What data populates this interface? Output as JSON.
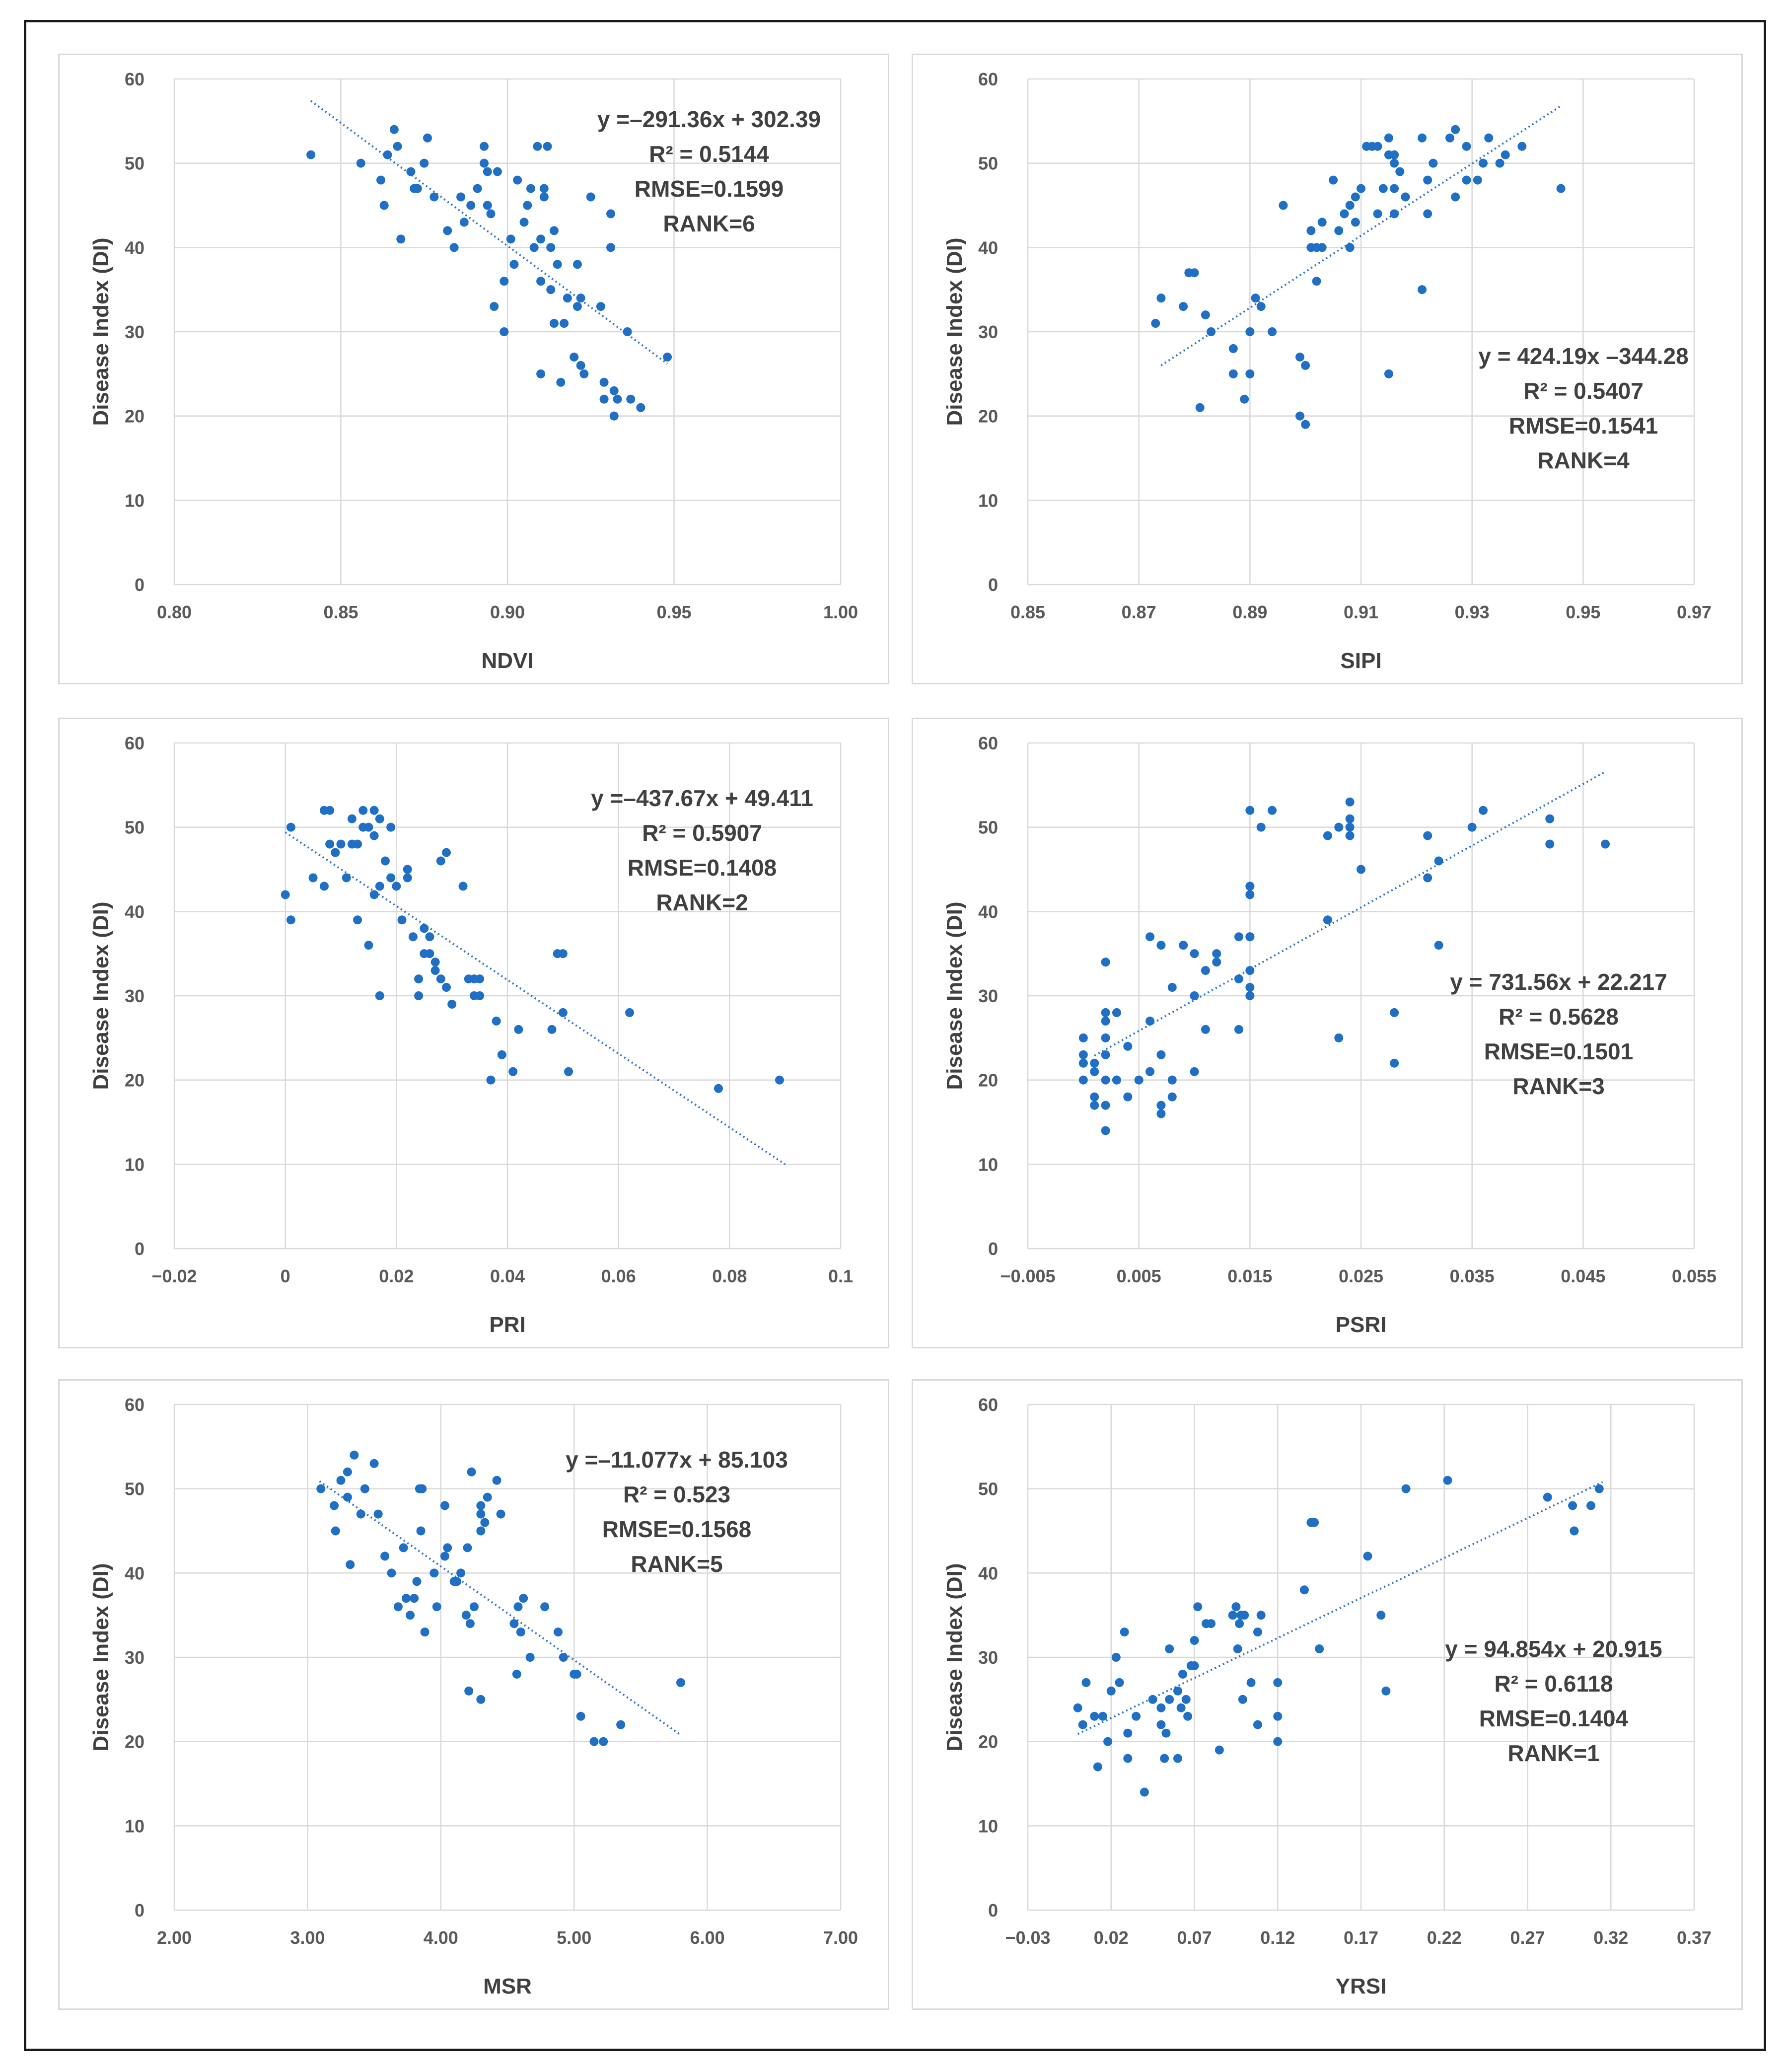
{
  "colors": {
    "point": "#1f6fc5",
    "trend": "#2e75c7",
    "grid": "#d9d9d9",
    "text": "#404040",
    "tick": "#595959"
  },
  "chart_data": [
    {
      "type": "scatter",
      "id": "ndvi",
      "xlabel": "NDVI",
      "ylabel": "Disease Index (DI)",
      "xlim": [
        0.8,
        1.0
      ],
      "ylim": [
        0,
        60
      ],
      "xticks": [
        "0.80",
        "0.85",
        "0.90",
        "0.95",
        "1.00"
      ],
      "yticks": [
        "0",
        "10",
        "20",
        "30",
        "40",
        "50",
        "60"
      ],
      "trendline": {
        "x": [
          0.841,
          0.948
        ],
        "y": [
          57.4,
          26.2
        ]
      },
      "annotation": [
        "y =–291.36x + 302.39",
        "R² = 0.5144",
        "RMSE=0.1599",
        "RANK=6"
      ],
      "x": [
        0.841,
        0.856,
        0.862,
        0.863,
        0.864,
        0.866,
        0.867,
        0.868,
        0.871,
        0.872,
        0.873,
        0.875,
        0.876,
        0.878,
        0.882,
        0.884,
        0.886,
        0.887,
        0.889,
        0.891,
        0.893,
        0.893,
        0.894,
        0.894,
        0.895,
        0.896,
        0.897,
        0.899,
        0.899,
        0.901,
        0.902,
        0.903,
        0.905,
        0.906,
        0.907,
        0.908,
        0.909,
        0.91,
        0.91,
        0.91,
        0.911,
        0.911,
        0.912,
        0.913,
        0.913,
        0.914,
        0.914,
        0.915,
        0.916,
        0.917,
        0.918,
        0.92,
        0.921,
        0.921,
        0.922,
        0.922,
        0.923,
        0.925,
        0.928,
        0.929,
        0.929,
        0.931,
        0.931,
        0.932,
        0.932,
        0.933,
        0.936,
        0.937,
        0.94,
        0.948
      ],
      "y": [
        51,
        50,
        48,
        45,
        51,
        54,
        52,
        41,
        49,
        47,
        47,
        50,
        53,
        46,
        42,
        40,
        46,
        43,
        45,
        47,
        52,
        50,
        45,
        49,
        44,
        33,
        49,
        36,
        30,
        41,
        38,
        48,
        43,
        45,
        47,
        40,
        52,
        41,
        36,
        25,
        47,
        46,
        52,
        35,
        40,
        31,
        42,
        38,
        24,
        31,
        34,
        27,
        33,
        38,
        26,
        34,
        25,
        46,
        33,
        24,
        22,
        40,
        44,
        23,
        20,
        22,
        30,
        22,
        21,
        27
      ]
    },
    {
      "type": "scatter",
      "id": "sipi",
      "xlabel": "SIPI",
      "ylabel": "Disease Index (DI)",
      "xlim": [
        0.85,
        0.97
      ],
      "ylim": [
        0,
        60
      ],
      "xticks": [
        "0.85",
        "0.87",
        "0.89",
        "0.91",
        "0.93",
        "0.95",
        "0.97"
      ],
      "yticks": [
        "0",
        "10",
        "20",
        "30",
        "40",
        "50",
        "60"
      ],
      "trendline": {
        "x": [
          0.874,
          0.946
        ],
        "y": [
          26.0,
          56.8
        ]
      },
      "annotation": [
        "y = 424.19x –344.28",
        "R² = 0.5407",
        "RMSE=0.1541",
        "RANK=4"
      ],
      "x": [
        0.873,
        0.874,
        0.878,
        0.879,
        0.88,
        0.881,
        0.882,
        0.883,
        0.887,
        0.887,
        0.889,
        0.89,
        0.89,
        0.891,
        0.892,
        0.894,
        0.896,
        0.899,
        0.899,
        0.9,
        0.9,
        0.901,
        0.901,
        0.902,
        0.902,
        0.903,
        0.903,
        0.905,
        0.906,
        0.907,
        0.908,
        0.908,
        0.909,
        0.909,
        0.91,
        0.911,
        0.911,
        0.912,
        0.913,
        0.913,
        0.914,
        0.915,
        0.915,
        0.915,
        0.916,
        0.916,
        0.916,
        0.916,
        0.917,
        0.918,
        0.921,
        0.921,
        0.922,
        0.922,
        0.923,
        0.926,
        0.927,
        0.927,
        0.929,
        0.929,
        0.931,
        0.932,
        0.933,
        0.935,
        0.936,
        0.939,
        0.946
      ],
      "y": [
        31,
        34,
        33,
        37,
        37,
        21,
        32,
        30,
        28,
        25,
        22,
        30,
        25,
        34,
        33,
        30,
        45,
        27,
        20,
        19,
        26,
        42,
        40,
        40,
        36,
        43,
        40,
        48,
        42,
        44,
        40,
        45,
        46,
        43,
        47,
        52,
        52,
        52,
        52,
        44,
        47,
        51,
        53,
        25,
        50,
        47,
        51,
        44,
        49,
        46,
        53,
        35,
        44,
        48,
        50,
        53,
        54,
        46,
        48,
        52,
        48,
        50,
        53,
        50,
        51,
        52,
        47
      ]
    },
    {
      "type": "scatter",
      "id": "pri",
      "xlabel": "PRI",
      "ylabel": "Disease Index (DI)",
      "xlim": [
        -0.02,
        0.1
      ],
      "ylim": [
        0,
        60
      ],
      "xticks": [
        "−0.02",
        "0",
        "0.02",
        "0.04",
        "0.06",
        "0.08",
        "0.1"
      ],
      "yticks": [
        "0",
        "10",
        "20",
        "30",
        "40",
        "50",
        "60"
      ],
      "trendline": {
        "x": [
          0.0,
          0.09
        ],
        "y": [
          49.4,
          10.0
        ]
      },
      "annotation": [
        "y =–437.67x + 49.411",
        "R² = 0.5907",
        "RMSE=0.1408",
        "RANK=2"
      ],
      "x": [
        0.0,
        0.001,
        0.001,
        0.005,
        0.007,
        0.007,
        0.008,
        0.008,
        0.009,
        0.009,
        0.01,
        0.011,
        0.012,
        0.012,
        0.013,
        0.013,
        0.014,
        0.014,
        0.015,
        0.015,
        0.016,
        0.016,
        0.016,
        0.017,
        0.017,
        0.017,
        0.018,
        0.019,
        0.019,
        0.02,
        0.021,
        0.022,
        0.022,
        0.023,
        0.024,
        0.024,
        0.025,
        0.025,
        0.026,
        0.026,
        0.027,
        0.027,
        0.028,
        0.028,
        0.029,
        0.029,
        0.03,
        0.032,
        0.033,
        0.034,
        0.034,
        0.035,
        0.035,
        0.037,
        0.038,
        0.039,
        0.041,
        0.042,
        0.048,
        0.049,
        0.05,
        0.05,
        0.051,
        0.062,
        0.078,
        0.089
      ],
      "y": [
        42,
        39,
        50,
        44,
        43,
        52,
        48,
        52,
        47,
        47,
        48,
        44,
        51,
        48,
        48,
        39,
        50,
        52,
        36,
        50,
        42,
        49,
        52,
        30,
        51,
        43,
        46,
        44,
        50,
        43,
        39,
        44,
        45,
        37,
        32,
        30,
        38,
        35,
        35,
        37,
        33,
        34,
        32,
        46,
        31,
        47,
        29,
        43,
        32,
        32,
        30,
        30,
        32,
        20,
        27,
        23,
        21,
        26,
        26,
        35,
        28,
        35,
        21,
        28,
        19,
        20
      ]
    },
    {
      "type": "scatter",
      "id": "psri",
      "xlabel": "PSRI",
      "ylabel": "Disease Index (DI)",
      "xlim": [
        -0.005,
        0.055
      ],
      "ylim": [
        0,
        60
      ],
      "xticks": [
        "−0.005",
        "0.005",
        "0.015",
        "0.025",
        "0.035",
        "0.045",
        "0.055"
      ],
      "yticks": [
        "0",
        "10",
        "20",
        "30",
        "40",
        "50",
        "60"
      ],
      "trendline": {
        "x": [
          0.001,
          0.047
        ],
        "y": [
          22.9,
          56.6
        ]
      },
      "annotation": [
        "y = 731.56x + 22.217",
        "R² = 0.5628",
        "RMSE=0.1501",
        "RANK=3"
      ],
      "x": [
        0.0,
        0.0,
        0.0,
        0.0,
        0.0,
        0.001,
        0.001,
        0.001,
        0.001,
        0.002,
        0.002,
        0.002,
        0.002,
        0.002,
        0.002,
        0.002,
        0.002,
        0.003,
        0.003,
        0.003,
        0.004,
        0.004,
        0.005,
        0.006,
        0.006,
        0.006,
        0.007,
        0.007,
        0.007,
        0.007,
        0.008,
        0.008,
        0.008,
        0.009,
        0.01,
        0.01,
        0.01,
        0.011,
        0.011,
        0.012,
        0.012,
        0.014,
        0.014,
        0.014,
        0.015,
        0.015,
        0.015,
        0.015,
        0.015,
        0.015,
        0.015,
        0.015,
        0.015,
        0.016,
        0.017,
        0.022,
        0.022,
        0.023,
        0.023,
        0.024,
        0.024,
        0.024,
        0.024,
        0.025,
        0.028,
        0.028,
        0.031,
        0.031,
        0.032,
        0.032,
        0.035,
        0.036,
        0.042,
        0.042,
        0.047
      ],
      "y": [
        20,
        22,
        23,
        25,
        22,
        21,
        17,
        18,
        22,
        14,
        17,
        20,
        23,
        27,
        28,
        25,
        34,
        20,
        20,
        28,
        24,
        18,
        20,
        37,
        27,
        21,
        16,
        23,
        17,
        36,
        31,
        18,
        20,
        36,
        35,
        30,
        21,
        33,
        26,
        35,
        34,
        37,
        26,
        32,
        33,
        31,
        30,
        37,
        42,
        43,
        37,
        52,
        43,
        50,
        52,
        49,
        39,
        25,
        50,
        53,
        51,
        49,
        50,
        45,
        28,
        22,
        49,
        44,
        36,
        46,
        50,
        52,
        51,
        48,
        48
      ]
    },
    {
      "type": "scatter",
      "id": "msr",
      "xlabel": "MSR",
      "ylabel": "Disease Index (DI)",
      "xlim": [
        2.0,
        7.0
      ],
      "ylim": [
        0,
        60
      ],
      "xticks": [
        "2.00",
        "3.00",
        "4.00",
        "5.00",
        "6.00",
        "7.00"
      ],
      "yticks": [
        "0",
        "10",
        "20",
        "30",
        "40",
        "50",
        "60"
      ],
      "trendline": {
        "x": [
          3.09,
          5.79
        ],
        "y": [
          50.9,
          20.9
        ]
      },
      "annotation": [
        "y =–11.077x + 85.103",
        "R² = 0.523",
        "RMSE=0.1568",
        "RANK=5"
      ],
      "x": [
        3.1,
        3.2,
        3.21,
        3.25,
        3.3,
        3.3,
        3.32,
        3.35,
        3.4,
        3.43,
        3.5,
        3.53,
        3.58,
        3.63,
        3.68,
        3.72,
        3.74,
        3.77,
        3.8,
        3.82,
        3.84,
        3.85,
        3.86,
        3.88,
        3.95,
        3.97,
        4.03,
        4.03,
        4.05,
        4.1,
        4.12,
        4.15,
        4.19,
        4.2,
        4.21,
        4.22,
        4.23,
        4.25,
        4.3,
        4.3,
        4.3,
        4.3,
        4.33,
        4.35,
        4.42,
        4.45,
        4.55,
        4.57,
        4.58,
        4.6,
        4.62,
        4.67,
        4.78,
        4.88,
        4.92,
        5.0,
        5.02,
        5.05,
        5.15,
        5.22,
        5.35,
        5.8
      ],
      "y": [
        50,
        48,
        45,
        51,
        49,
        52,
        41,
        54,
        47,
        50,
        53,
        47,
        42,
        40,
        36,
        43,
        37,
        35,
        37,
        39,
        50,
        45,
        50,
        33,
        40,
        36,
        48,
        42,
        43,
        39,
        39,
        40,
        35,
        43,
        26,
        34,
        52,
        36,
        25,
        47,
        48,
        45,
        46,
        49,
        51,
        47,
        34,
        28,
        36,
        33,
        37,
        30,
        36,
        33,
        30,
        28,
        28,
        23,
        20,
        20,
        22,
        27
      ]
    },
    {
      "type": "scatter",
      "id": "yrsi",
      "xlabel": "YRSI",
      "ylabel": "Disease Index (DI)",
      "xlim": [
        -0.03,
        0.37
      ],
      "ylim": [
        0,
        60
      ],
      "xticks": [
        "−0.03",
        "0.02",
        "0.07",
        "0.12",
        "0.17",
        "0.22",
        "0.27",
        "0.32",
        "0.37"
      ],
      "yticks": [
        "0",
        "10",
        "20",
        "30",
        "40",
        "50",
        "60"
      ],
      "trendline": {
        "x": [
          0.0,
          0.315
        ],
        "y": [
          20.9,
          50.8
        ]
      },
      "annotation": [
        "y = 94.854x + 20.915",
        "R² = 0.6118",
        "RMSE=0.1404",
        "RANK=1"
      ],
      "x": [
        0.0,
        0.003,
        0.005,
        0.01,
        0.012,
        0.015,
        0.018,
        0.02,
        0.023,
        0.025,
        0.028,
        0.03,
        0.03,
        0.035,
        0.04,
        0.045,
        0.05,
        0.05,
        0.052,
        0.053,
        0.055,
        0.055,
        0.06,
        0.06,
        0.062,
        0.063,
        0.065,
        0.066,
        0.068,
        0.07,
        0.07,
        0.072,
        0.077,
        0.08,
        0.085,
        0.093,
        0.095,
        0.096,
        0.097,
        0.098,
        0.099,
        0.1,
        0.104,
        0.108,
        0.108,
        0.11,
        0.12,
        0.12,
        0.12,
        0.136,
        0.14,
        0.142,
        0.145,
        0.174,
        0.182,
        0.185,
        0.197,
        0.222,
        0.282,
        0.297,
        0.298,
        0.308,
        0.313
      ],
      "y": [
        24,
        22,
        27,
        23,
        17,
        23,
        20,
        26,
        30,
        27,
        33,
        21,
        18,
        23,
        14,
        25,
        22,
        24,
        18,
        21,
        25,
        31,
        26,
        18,
        24,
        28,
        25,
        23,
        29,
        29,
        32,
        36,
        34,
        34,
        19,
        35,
        36,
        31,
        34,
        35,
        25,
        35,
        27,
        22,
        33,
        35,
        20,
        23,
        27,
        38,
        46,
        46,
        31,
        42,
        35,
        26,
        50,
        51,
        49,
        48,
        45,
        48,
        50
      ]
    }
  ]
}
